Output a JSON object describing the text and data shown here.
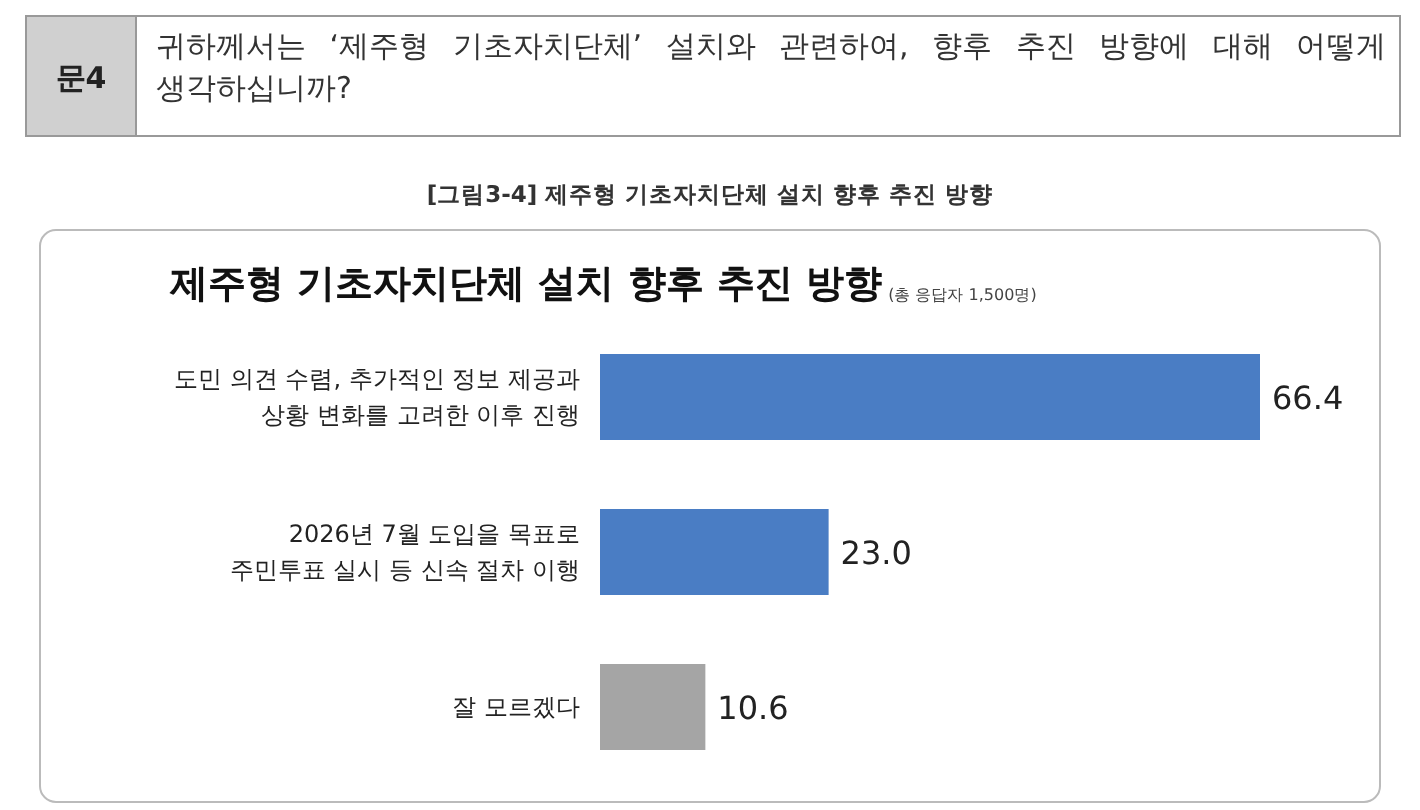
{
  "chart_data": {
    "type": "bar",
    "orientation": "horizontal",
    "title": "제주형 기초자치단체 설치 향후 추진 방향",
    "subtitle": "(총 응답자 1,500명)",
    "annotations": [
      "문4",
      "귀하께서는 ‘제주형 기초자치단체’ 설치와 관련하여, 향후 추진 방향에 대해 어떻게 생각하십니까?",
      "[그림3-4] 제주형 기초자치단체 설치 향후 추진 방향"
    ],
    "categories": [
      "도민 의견 수렴, 추가적인 정보 제공과\n상황 변화를 고려한 이후 진행",
      "2026년 7월 도입을 목표로\n주민투표 실시 등 신속 절차 이행",
      "잘 모르겠다"
    ],
    "values": [
      66.4,
      23.0,
      10.6
    ],
    "colors": [
      "#4a7dc4",
      "#4a7dc4",
      "#a5a5a5"
    ],
    "value_labels": [
      "66.4",
      "23.0",
      "10.6"
    ]
  }
}
